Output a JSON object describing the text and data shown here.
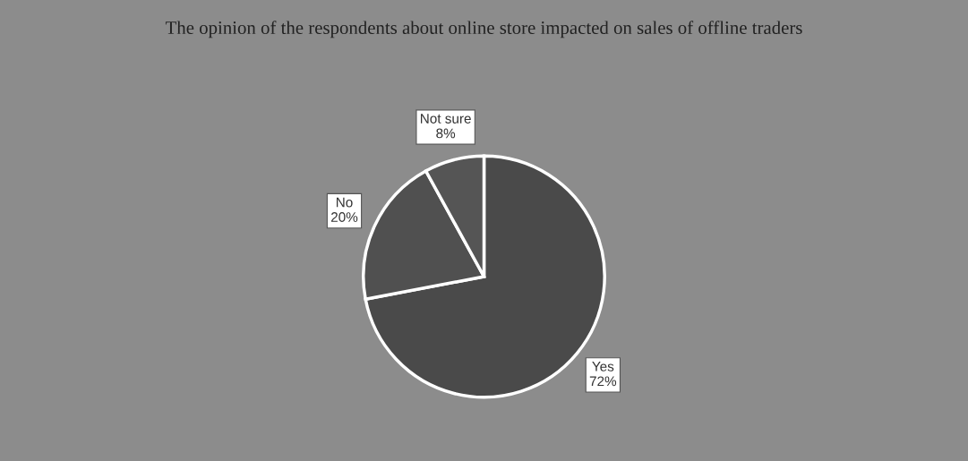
{
  "chart_data": {
    "type": "pie",
    "title": "The opinion of the respondents about online store impacted on sales of offline traders",
    "categories": [
      "Yes",
      "No",
      "Not sure"
    ],
    "values": [
      72,
      20,
      8
    ],
    "colors": [
      "#4a4a4a",
      "#505050",
      "#555555"
    ],
    "value_labels": [
      "72%",
      "20%",
      "8%"
    ]
  }
}
